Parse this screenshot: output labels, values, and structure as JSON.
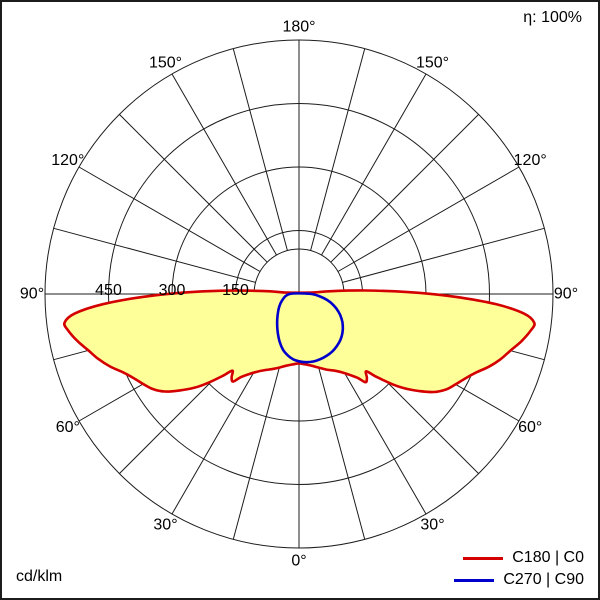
{
  "header": {
    "efficiency": "η: 100%"
  },
  "footer": {
    "unit": "cd/klm"
  },
  "legend": {
    "entries": [
      {
        "label": "C180 | C0",
        "color": "#d40000"
      },
      {
        "label": "C270 | C90",
        "color": "#0000cd"
      }
    ]
  },
  "chart_data": {
    "type": "line",
    "coordinate_system": "polar",
    "description": "Luminous intensity distribution curve (polar diagram). Angles measured from nadir (0° at bottom, 180° at top), radial values in cd/klm.",
    "efficiency": "η: 100%",
    "unit": "cd/klm",
    "r_max": 600,
    "grid": {
      "circle_values": [
        150,
        300,
        450,
        600
      ],
      "radial_ticks": [
        150,
        300,
        450
      ],
      "ray_step_deg": 15,
      "angles_deg": [
        0,
        30,
        60,
        90,
        120,
        150,
        180
      ],
      "angle_labels": [
        "0°",
        "30°",
        "60°",
        "90°",
        "120°",
        "150°",
        "180°"
      ]
    },
    "series": [
      {
        "name": "C180 | C0",
        "color": "#d40000",
        "fill": "#ffff99",
        "points": [
          [
            -97,
            28
          ],
          [
            -95,
            75
          ],
          [
            -93,
            155
          ],
          [
            -91,
            255
          ],
          [
            -89,
            365
          ],
          [
            -87,
            465
          ],
          [
            -85,
            532
          ],
          [
            -83,
            558
          ],
          [
            -81,
            552
          ],
          [
            -78,
            535
          ],
          [
            -75,
            515
          ],
          [
            -72,
            498
          ],
          [
            -69,
            478
          ],
          [
            -66,
            455
          ],
          [
            -63,
            438
          ],
          [
            -60,
            425
          ],
          [
            -57,
            412
          ],
          [
            -54,
            392
          ],
          [
            -51,
            362
          ],
          [
            -48,
            330
          ],
          [
            -46,
            305
          ],
          [
            -43,
            265
          ],
          [
            -41,
            240
          ],
          [
            -39,
            253
          ],
          [
            -37,
            259
          ],
          [
            -35,
            240
          ],
          [
            -32,
            223
          ],
          [
            -29,
            211
          ],
          [
            -25,
            199
          ],
          [
            -20,
            189
          ],
          [
            -15,
            180
          ],
          [
            -10,
            172
          ],
          [
            -5,
            167
          ],
          [
            0,
            164
          ],
          [
            5,
            167
          ],
          [
            10,
            172
          ],
          [
            15,
            180
          ],
          [
            20,
            190
          ],
          [
            25,
            200
          ],
          [
            29,
            212
          ],
          [
            32,
            225
          ],
          [
            35,
            242
          ],
          [
            37,
            261
          ],
          [
            39,
            255
          ],
          [
            41,
            242
          ],
          [
            43,
            267
          ],
          [
            46,
            307
          ],
          [
            48,
            332
          ],
          [
            51,
            364
          ],
          [
            54,
            394
          ],
          [
            57,
            414
          ],
          [
            60,
            427
          ],
          [
            63,
            440
          ],
          [
            66,
            457
          ],
          [
            69,
            480
          ],
          [
            72,
            500
          ],
          [
            75,
            517
          ],
          [
            78,
            537
          ],
          [
            81,
            554
          ],
          [
            83,
            560
          ],
          [
            85,
            534
          ],
          [
            87,
            467
          ],
          [
            89,
            367
          ],
          [
            91,
            257
          ],
          [
            93,
            157
          ],
          [
            95,
            77
          ],
          [
            97,
            30
          ]
        ]
      },
      {
        "name": "C270 | C90",
        "color": "#0000cd",
        "fill": "none",
        "points": [
          [
            -95,
            14
          ],
          [
            -88,
            25
          ],
          [
            -80,
            33
          ],
          [
            -72,
            40
          ],
          [
            -64,
            48
          ],
          [
            -56,
            57
          ],
          [
            -48,
            67
          ],
          [
            -40,
            80
          ],
          [
            -34,
            92
          ],
          [
            -28,
            106
          ],
          [
            -22,
            122
          ],
          [
            -16,
            137
          ],
          [
            -10,
            148
          ],
          [
            -5,
            155
          ],
          [
            0,
            159
          ],
          [
            6,
            162
          ],
          [
            12,
            163
          ],
          [
            18,
            162
          ],
          [
            24,
            160
          ],
          [
            30,
            157
          ],
          [
            36,
            152
          ],
          [
            42,
            146
          ],
          [
            48,
            138
          ],
          [
            54,
            128
          ],
          [
            60,
            116
          ],
          [
            66,
            102
          ],
          [
            72,
            86
          ],
          [
            78,
            68
          ],
          [
            84,
            48
          ],
          [
            90,
            30
          ],
          [
            95,
            14
          ]
        ]
      }
    ]
  }
}
